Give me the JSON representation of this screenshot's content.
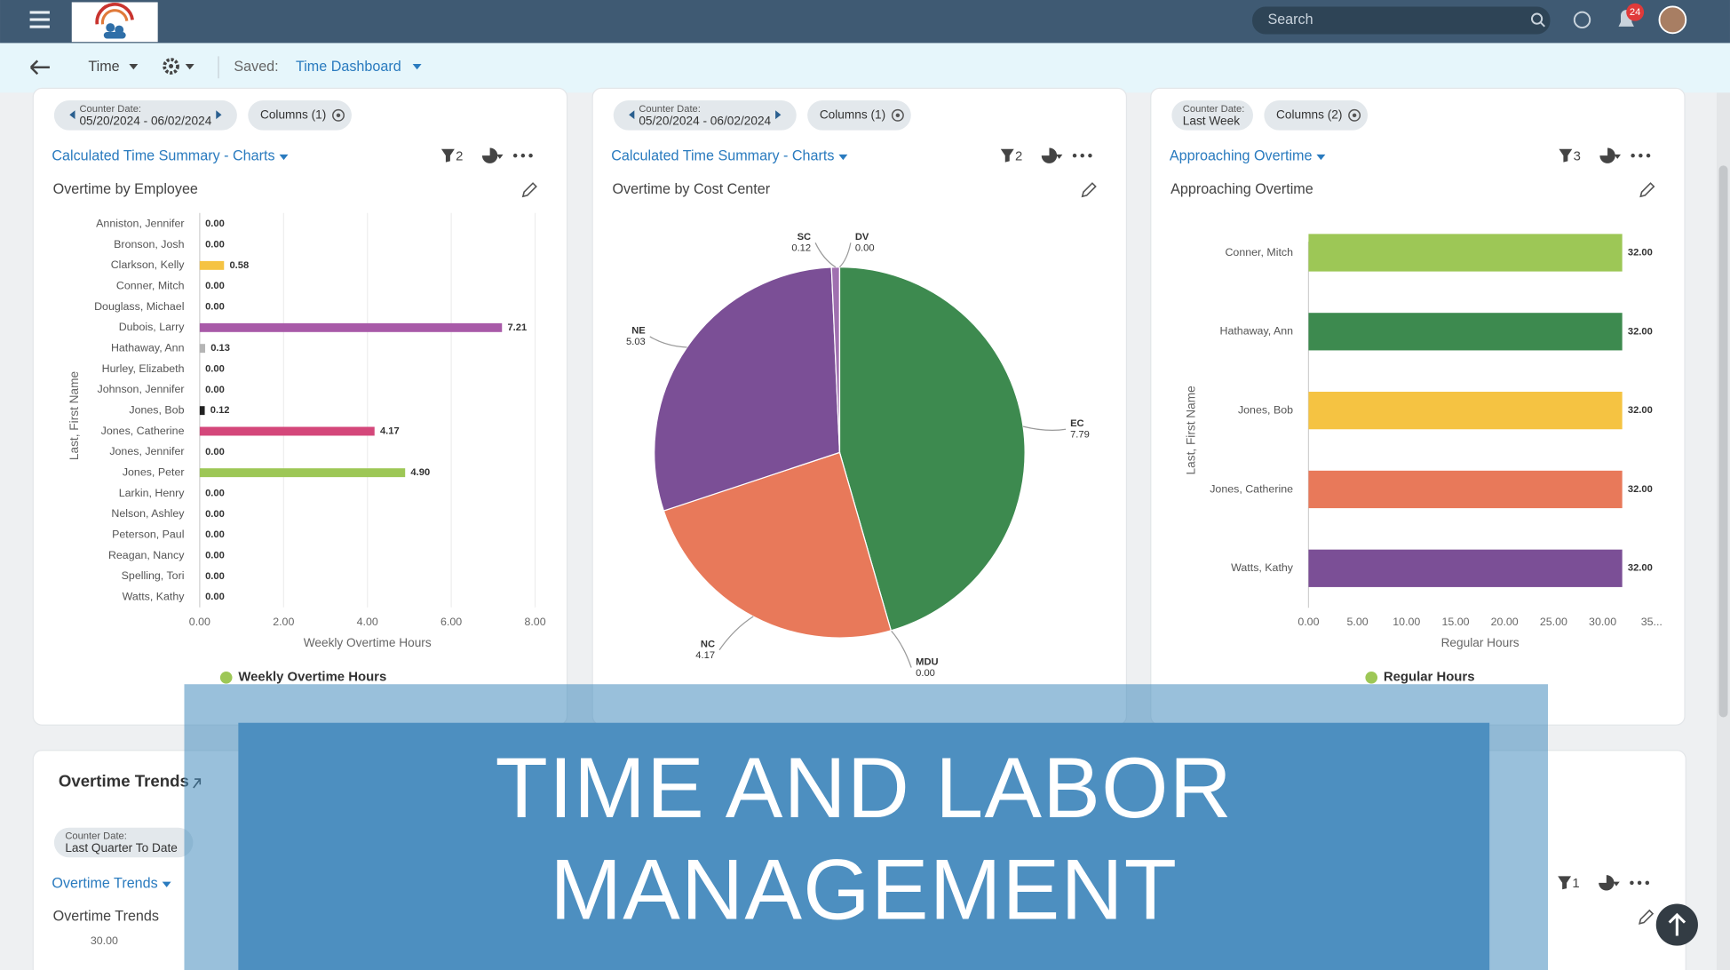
{
  "nav": {
    "search": "Search",
    "badge": "24"
  },
  "toolbar": {
    "menu": "Time",
    "saved_label": "Saved:",
    "saved_value": "Time Dashboard"
  },
  "panels": [
    {
      "chips": [
        {
          "label": "Counter Date:",
          "value": "05/20/2024 - 06/02/2024"
        },
        {
          "value": "Columns (1)"
        }
      ],
      "title": "Calculated Time Summary - Charts",
      "filters": 2,
      "subtitle": "Overtime by Employee"
    },
    {
      "chips": [
        {
          "label": "Counter Date:",
          "value": "05/20/2024 - 06/02/2024"
        },
        {
          "value": "Columns (1)"
        }
      ],
      "title": "Calculated Time Summary - Charts",
      "filters": 2,
      "subtitle": "Overtime by Cost Center"
    },
    {
      "chips": [
        {
          "label": "Counter Date:",
          "value": "Last Week"
        },
        {
          "value": "Columns (2)"
        }
      ],
      "title": "Approaching Overtime",
      "filters": 3,
      "subtitle": "Approaching Overtime"
    }
  ],
  "chart_data": [
    {
      "type": "hbar",
      "categories": [
        "Anniston, Jennifer",
        "Bronson, Josh",
        "Clarkson, Kelly",
        "Conner, Mitch",
        "Douglass, Michael",
        "Dubois, Larry",
        "Hathaway, Ann",
        "Hurley, Elizabeth",
        "Johnson, Jennifer",
        "Jones, Bob",
        "Jones, Catherine",
        "Jones, Jennifer",
        "Jones, Peter",
        "Larkin, Henry",
        "Nelson, Ashley",
        "Peterson, Paul",
        "Reagan, Nancy",
        "Spelling, Tori",
        "Watts, Kathy"
      ],
      "values": [
        0,
        0,
        0.58,
        0,
        0,
        7.21,
        0.13,
        0,
        0,
        0.12,
        4.17,
        0,
        4.9,
        0,
        0,
        0,
        0,
        0,
        0
      ],
      "value_labels": [
        "0.00",
        "0.00",
        "0.58",
        "0.00",
        "0.00",
        "7.21",
        "0.13",
        "0.00",
        "0.00",
        "0.12",
        "4.17",
        "0.00",
        "4.90",
        "0.00",
        "0.00",
        "0.00",
        "0.00",
        "0.00",
        "0.00"
      ],
      "colors": [
        "#999999",
        "#999999",
        "#f5c342",
        "#999999",
        "#999999",
        "#a85aa8",
        "#b5b5b5",
        "#999999",
        "#999999",
        "#222222",
        "#d4477a",
        "#999999",
        "#9dc756",
        "#999999",
        "#999999",
        "#999999",
        "#999999",
        "#999999",
        "#999999"
      ],
      "xlim": [
        0,
        8
      ],
      "xticks": [
        {
          "value": 0,
          "label": "0.00"
        },
        {
          "value": 2,
          "label": "2.00"
        },
        {
          "value": 4,
          "label": "4.00"
        },
        {
          "value": 6,
          "label": "6.00"
        },
        {
          "value": 8,
          "label": "8.00"
        }
      ],
      "xlabel": "Weekly Overtime Hours",
      "ylabel": "Last, First Name",
      "legend": "Weekly Overtime Hours",
      "legend_color": "#9dc756",
      "grid": true
    },
    {
      "type": "pie",
      "categories": [
        "EC",
        "MDU",
        "NC",
        "NE",
        "SC",
        "DV"
      ],
      "values": [
        7.79,
        0,
        4.17,
        5.03,
        0.12,
        0
      ],
      "value_labels": [
        "7.79",
        "0.00",
        "4.17",
        "5.03",
        "0.12",
        "0.00"
      ],
      "colors": [
        "#3d8a4f",
        "#5b9bd5",
        "#e8795a",
        "#7b4f96",
        "#a070b0",
        "#c8a0d0"
      ]
    },
    {
      "type": "hbar",
      "categories": [
        "Conner, Mitch",
        "Hathaway, Ann",
        "Jones, Bob",
        "Jones, Catherine",
        "Watts, Kathy"
      ],
      "values": [
        32,
        32,
        32,
        32,
        32
      ],
      "value_labels": [
        "32.00",
        "32.00",
        "32.00",
        "32.00",
        "32.00"
      ],
      "colors": [
        "#9dc756",
        "#3d8a4f",
        "#f5c342",
        "#e8795a",
        "#7b4f96"
      ],
      "xlim": [
        0,
        35
      ],
      "xticks": [
        {
          "value": 0,
          "label": "0.00"
        },
        {
          "value": 5,
          "label": "5.00"
        },
        {
          "value": 10,
          "label": "10.00"
        },
        {
          "value": 15,
          "label": "15.00"
        },
        {
          "value": 20,
          "label": "20.00"
        },
        {
          "value": 25,
          "label": "25.00"
        },
        {
          "value": 30,
          "label": "30.00"
        },
        {
          "value": 35,
          "label": "35..."
        }
      ],
      "xlabel": "Regular Hours",
      "ylabel": "Last, First Name",
      "legend": "Regular Hours",
      "legend_color": "#9dc756",
      "grid": false
    }
  ],
  "trends": {
    "heading": "Overtime Trends",
    "chip_label": "Counter Date:",
    "chip_value": "Last Quarter To Date",
    "title": "Overtime Trends",
    "filters": 1,
    "subtitle": "Overtime Trends",
    "tick": "30.00"
  },
  "banner": {
    "lines": [
      "TIME AND LABOR",
      "MANAGEMENT"
    ]
  }
}
